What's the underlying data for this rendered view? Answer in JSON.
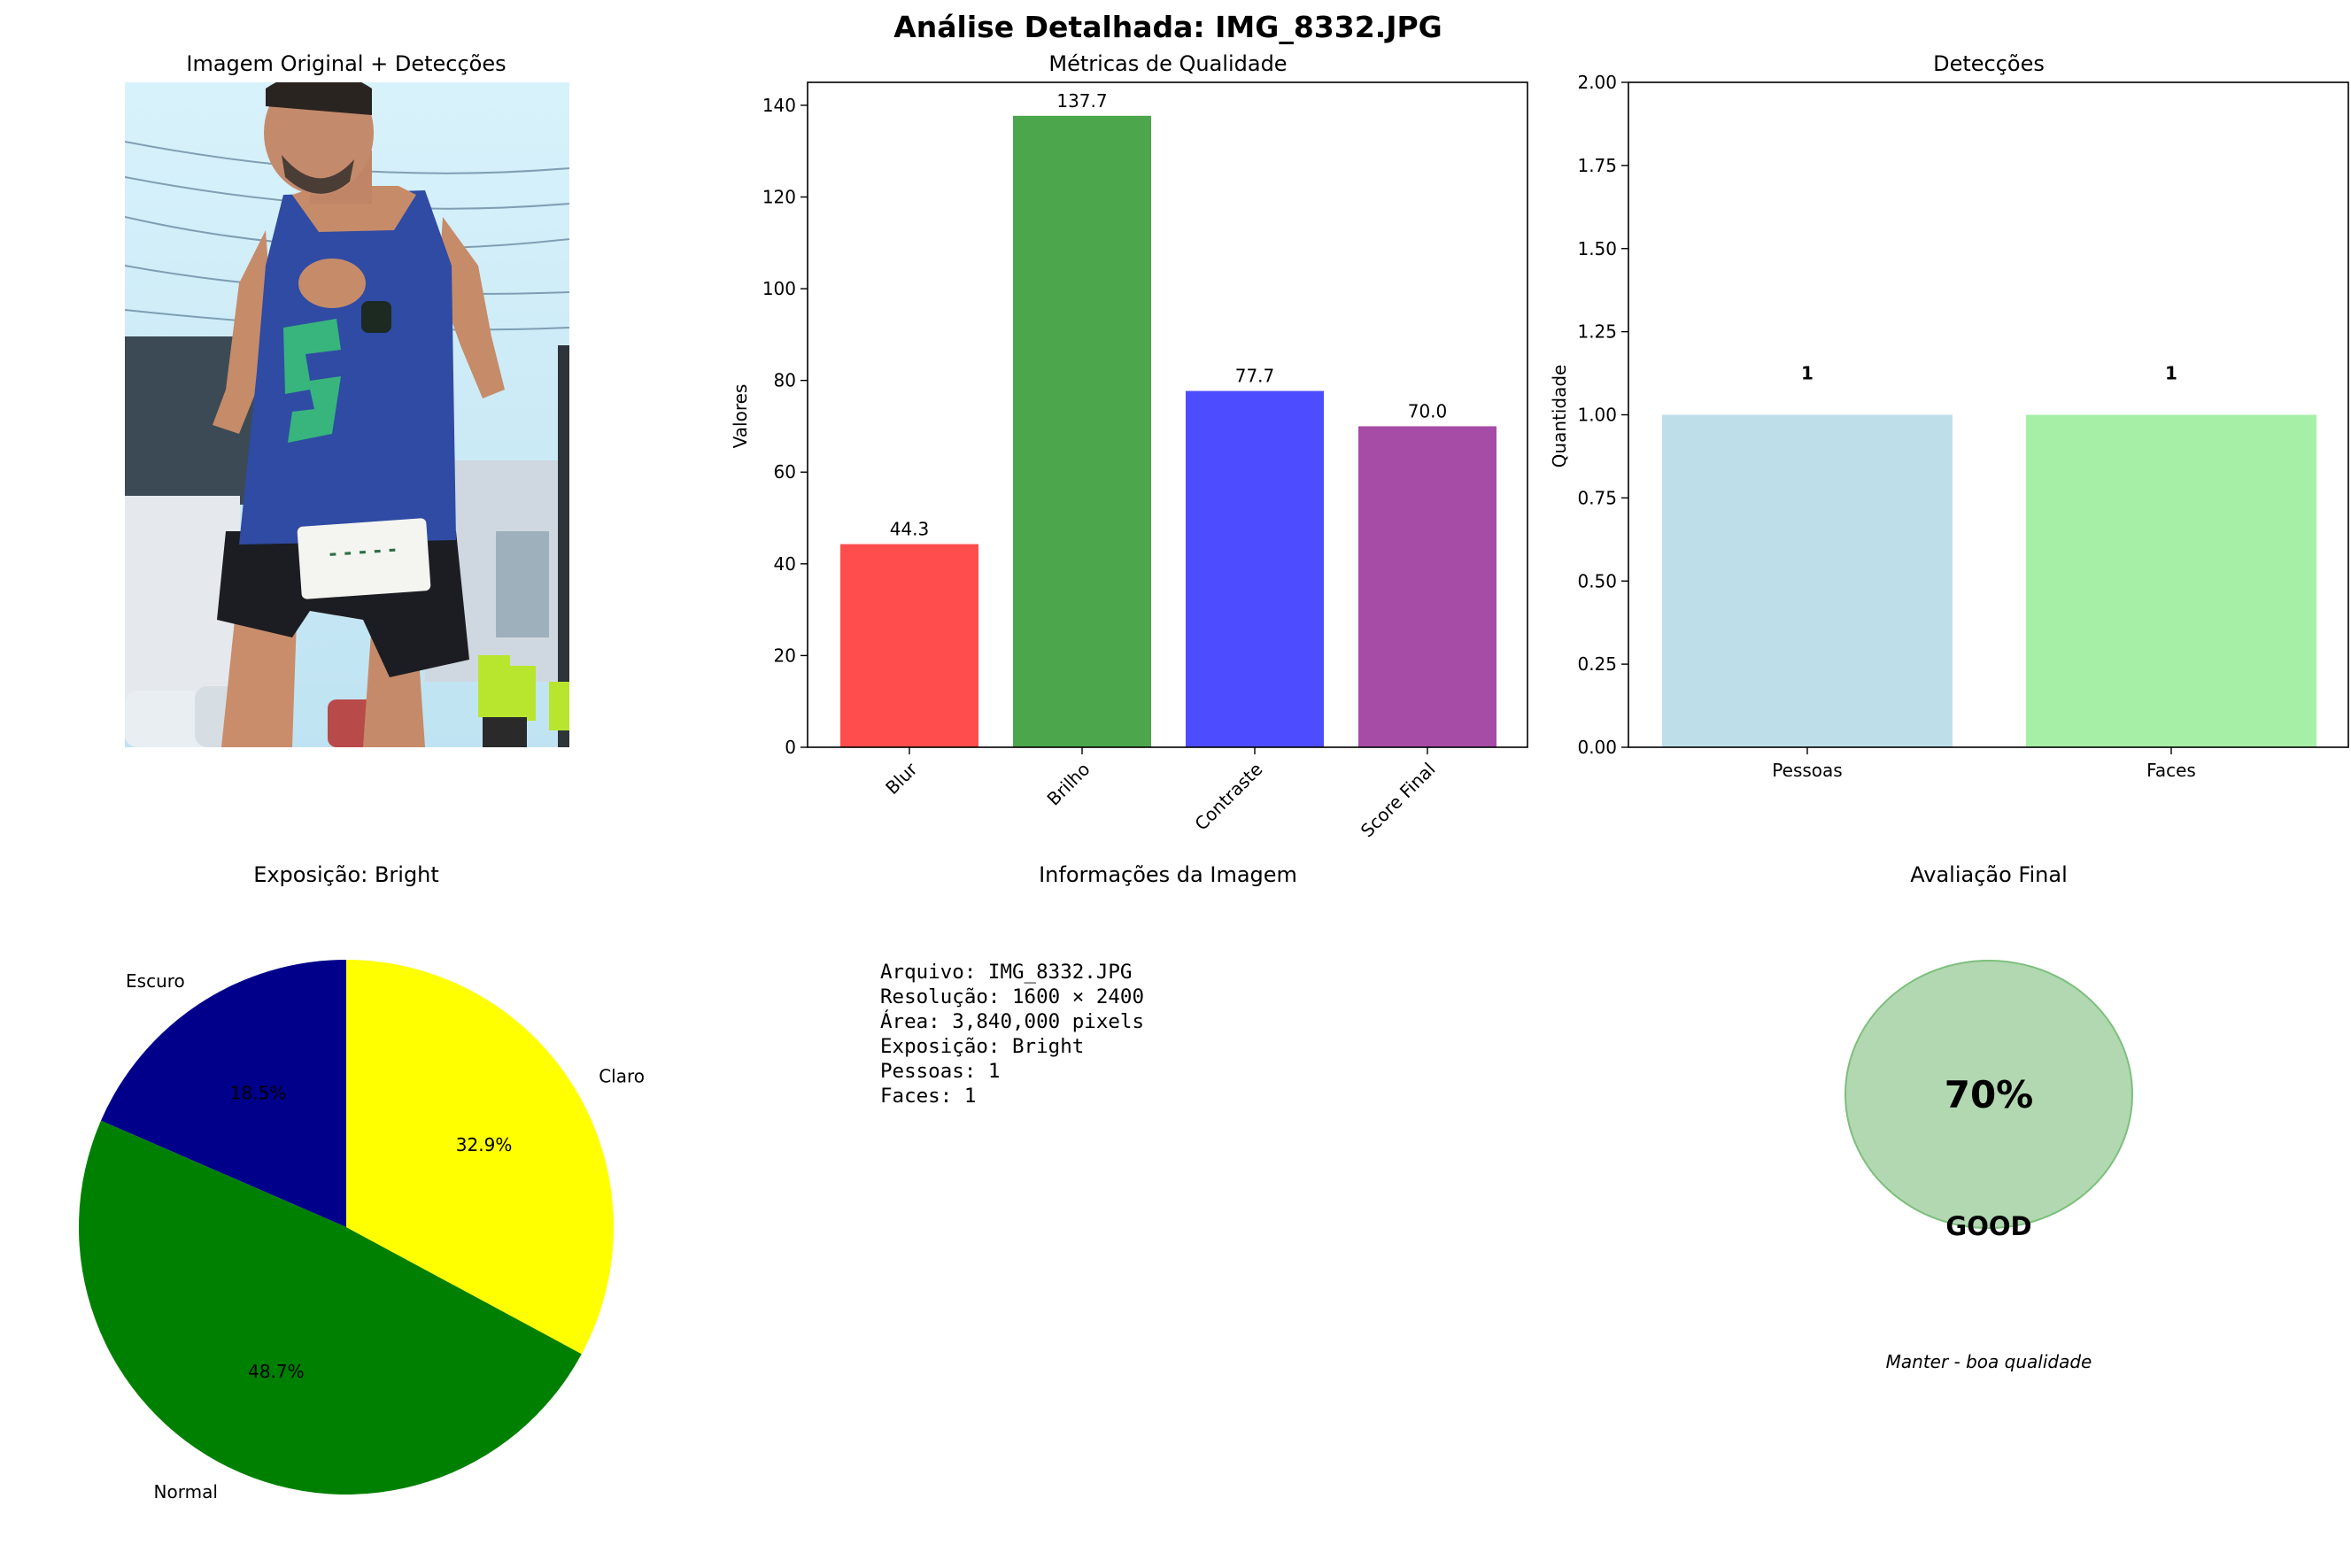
{
  "figure": {
    "title": "Análise Detalhada: IMG_8332.JPG"
  },
  "panel_image": {
    "title": "Imagem Original + Detecções"
  },
  "chart_data": [
    {
      "type": "bar",
      "title": "Métricas de Qualidade",
      "xlabel": "",
      "ylabel": "Valores",
      "categories": [
        "Blur",
        "Brilho",
        "Contraste",
        "Score Final"
      ],
      "values": [
        44.3,
        137.7,
        77.7,
        70.0
      ],
      "value_labels": [
        "44.3",
        "137.7",
        "77.7",
        "70.0"
      ],
      "colors": [
        "#FF4D4D",
        "#4CA64C",
        "#4D4DFF",
        "#A64CA6"
      ],
      "ylim": [
        0,
        145
      ],
      "yticks": [
        0,
        20,
        40,
        60,
        80,
        100,
        120,
        140
      ],
      "ytick_labels": [
        "0",
        "20",
        "40",
        "60",
        "80",
        "100",
        "120",
        "140"
      ],
      "grid": false
    },
    {
      "type": "bar",
      "title": "Detecções",
      "xlabel": "",
      "ylabel": "Quantidade",
      "categories": [
        "Pessoas",
        "Faces"
      ],
      "values": [
        1,
        1
      ],
      "value_labels": [
        "1",
        "1"
      ],
      "colors": [
        "#BEDFEA",
        "#A6EFA6"
      ],
      "ylim": [
        0,
        2
      ],
      "yticks": [
        0,
        0.25,
        0.5,
        0.75,
        1.0,
        1.25,
        1.5,
        1.75,
        2.0
      ],
      "ytick_labels": [
        "0.00",
        "0.25",
        "0.50",
        "0.75",
        "1.00",
        "1.25",
        "1.50",
        "1.75",
        "2.00"
      ],
      "grid": false
    },
    {
      "type": "pie",
      "title": "Exposição: Bright",
      "labels": [
        "Escuro",
        "Normal",
        "Claro"
      ],
      "values": [
        18.5,
        48.7,
        32.9
      ],
      "pct_labels": [
        "18.5%",
        "48.7%",
        "32.9%"
      ],
      "colors": [
        "#00008B",
        "#008000",
        "#FFFF00"
      ],
      "start_angle_deg": 90,
      "direction": "counterclockwise"
    }
  ],
  "info_panel": {
    "title": "Informações da Imagem",
    "lines": [
      "Arquivo: IMG_8332.JPG",
      "Resolução: 1600 × 2400",
      "Área: 3,840,000 pixels",
      "Exposição: Bright",
      "Pessoas: 1",
      "Faces: 1"
    ]
  },
  "final_panel": {
    "title": "Avaliação Final",
    "score_label": "70%",
    "status": "GOOD",
    "status_color": "#008000",
    "circle_color": "#B2D8B2",
    "recommendation": "Manter - boa qualidade"
  }
}
